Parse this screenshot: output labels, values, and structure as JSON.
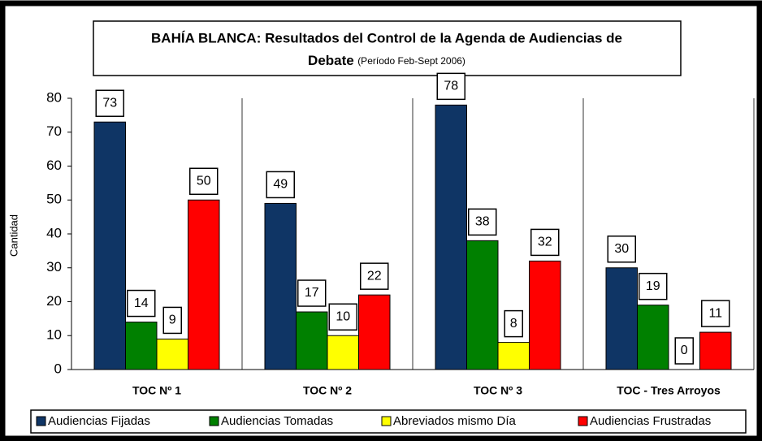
{
  "chart_data": {
    "type": "bar",
    "title": "BAHÍA BLANCA: Resultados del Control de la Agenda de Audiencias de Debate",
    "subtitle": "(Período Feb-Sept 2006)",
    "y_label": "Cantidad",
    "categories": [
      "TOC Nº 1",
      "TOC Nº 2",
      "TOC Nº 3",
      "TOC - Tres Arroyos"
    ],
    "series": [
      {
        "name": "Audiencias Fijadas",
        "color": "#0f3565",
        "values": [
          73,
          49,
          78,
          30
        ]
      },
      {
        "name": "Audiencias Tomadas",
        "color": "#008000",
        "values": [
          14,
          17,
          38,
          19
        ]
      },
      {
        "name": "Abreviados mismo Día",
        "color": "#ffff00",
        "values": [
          9,
          10,
          8,
          0
        ]
      },
      {
        "name": "Audiencias Frustradas",
        "color": "#ff0000",
        "values": [
          50,
          22,
          32,
          11
        ]
      }
    ],
    "ylim": [
      0,
      80
    ],
    "yticks": [
      0,
      10,
      20,
      30,
      40,
      50,
      60,
      70,
      80
    ]
  }
}
